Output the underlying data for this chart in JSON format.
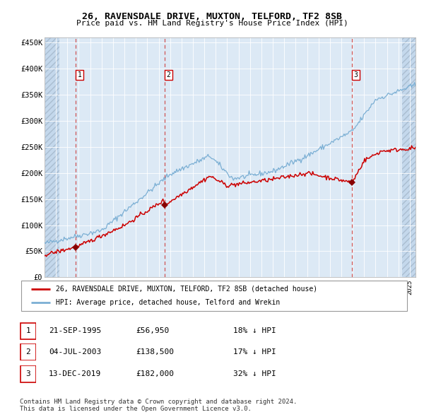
{
  "title": "26, RAVENSDALE DRIVE, MUXTON, TELFORD, TF2 8SB",
  "subtitle": "Price paid vs. HM Land Registry's House Price Index (HPI)",
  "ylim": [
    0,
    460000
  ],
  "yticks": [
    0,
    50000,
    100000,
    150000,
    200000,
    250000,
    300000,
    350000,
    400000,
    450000
  ],
  "ytick_labels": [
    "£0",
    "£50K",
    "£100K",
    "£150K",
    "£200K",
    "£250K",
    "£300K",
    "£350K",
    "£400K",
    "£450K"
  ],
  "x_start_year": 1993,
  "x_end_year": 2025,
  "sale_dates": [
    1995.72,
    2003.51,
    2019.95
  ],
  "sale_prices": [
    56950,
    138500,
    182000
  ],
  "sale_labels": [
    "1",
    "2",
    "3"
  ],
  "legend_entries": [
    "26, RAVENSDALE DRIVE, MUXTON, TELFORD, TF2 8SB (detached house)",
    "HPI: Average price, detached house, Telford and Wrekin"
  ],
  "table_rows": [
    [
      "1",
      "21-SEP-1995",
      "£56,950",
      "18% ↓ HPI"
    ],
    [
      "2",
      "04-JUL-2003",
      "£138,500",
      "17% ↓ HPI"
    ],
    [
      "3",
      "13-DEC-2019",
      "£182,000",
      "32% ↓ HPI"
    ]
  ],
  "footnote": "Contains HM Land Registry data © Crown copyright and database right 2024.\nThis data is licensed under the Open Government Licence v3.0.",
  "hpi_color": "#7bafd4",
  "price_color": "#cc0000",
  "dashed_line_color": "#cc0000",
  "bg_color": "#dce9f5",
  "grid_color": "#ffffff",
  "marker_color": "#880000"
}
